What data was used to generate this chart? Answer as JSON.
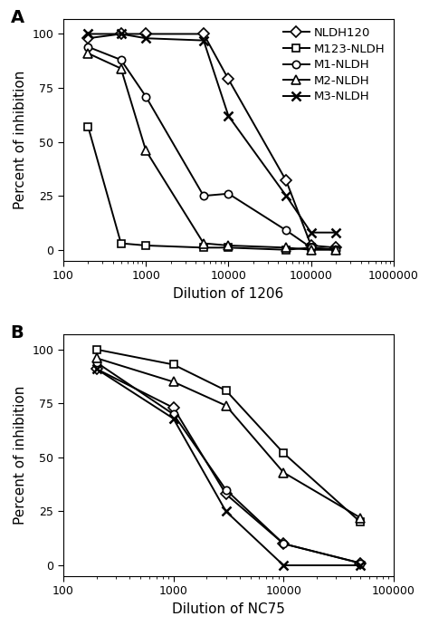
{
  "panel_A": {
    "title": "A",
    "xlabel": "Dilution of 1206",
    "ylabel": "Percent of inhibition",
    "xlim": [
      100,
      1000000
    ],
    "ylim": [
      -5,
      107
    ],
    "yticks": [
      0,
      25,
      50,
      75,
      100
    ],
    "xticks": [
      100,
      1000,
      10000,
      100000,
      1000000
    ],
    "xticklabels": [
      "100",
      "1000",
      "10000",
      "100000",
      "1000000"
    ],
    "series": [
      {
        "label": "NLDH120",
        "marker": "D",
        "markersize": 6,
        "x": [
          200,
          500,
          1000,
          5000,
          10000,
          50000,
          100000,
          200000
        ],
        "y": [
          98,
          100,
          100,
          100,
          79,
          32,
          2,
          1
        ]
      },
      {
        "label": "M123-NLDH",
        "marker": "s",
        "markersize": 6,
        "x": [
          200,
          500,
          1000,
          5000,
          10000,
          50000,
          100000,
          200000
        ],
        "y": [
          57,
          3,
          2,
          1,
          1,
          0,
          1,
          0
        ]
      },
      {
        "label": "M1-NLDH",
        "marker": "o",
        "markersize": 6,
        "x": [
          200,
          500,
          1000,
          5000,
          10000,
          50000,
          100000,
          200000
        ],
        "y": [
          94,
          88,
          71,
          25,
          26,
          9,
          1,
          0
        ]
      },
      {
        "label": "M2-NLDH",
        "marker": "^",
        "markersize": 7,
        "x": [
          200,
          500,
          1000,
          5000,
          10000,
          50000,
          100000,
          200000
        ],
        "y": [
          91,
          84,
          46,
          3,
          2,
          1,
          0,
          0
        ]
      },
      {
        "label": "M3-NLDH",
        "marker": "x",
        "markersize": 7,
        "x": [
          200,
          500,
          1000,
          5000,
          10000,
          50000,
          100000,
          200000
        ],
        "y": [
          100,
          100,
          98,
          97,
          62,
          25,
          8,
          8
        ]
      }
    ]
  },
  "panel_B": {
    "title": "B",
    "xlabel": "Dilution of NC75",
    "ylabel": "Percent of inhibition",
    "xlim": [
      100,
      100000
    ],
    "ylim": [
      -5,
      107
    ],
    "yticks": [
      0,
      25,
      50,
      75,
      100
    ],
    "xticks": [
      100,
      1000,
      10000,
      100000
    ],
    "xticklabels": [
      "100",
      "1000",
      "10000",
      "100000"
    ],
    "series": [
      {
        "label": "NLDH120",
        "marker": "D",
        "markersize": 6,
        "x": [
          200,
          1000,
          3000,
          10000,
          50000
        ],
        "y": [
          91,
          73,
          33,
          10,
          1
        ]
      },
      {
        "label": "M123-NLDH",
        "marker": "s",
        "markersize": 6,
        "x": [
          200,
          1000,
          3000,
          10000,
          50000
        ],
        "y": [
          100,
          93,
          81,
          52,
          20
        ]
      },
      {
        "label": "M1-NLDH",
        "marker": "o",
        "markersize": 6,
        "x": [
          200,
          1000,
          3000,
          10000,
          50000
        ],
        "y": [
          94,
          70,
          35,
          10,
          1
        ]
      },
      {
        "label": "M2-NLDH",
        "marker": "^",
        "markersize": 7,
        "x": [
          200,
          1000,
          3000,
          10000,
          50000
        ],
        "y": [
          96,
          85,
          74,
          43,
          22
        ]
      },
      {
        "label": "M3-NLDH",
        "marker": "x",
        "markersize": 7,
        "x": [
          200,
          1000,
          3000,
          10000,
          50000
        ],
        "y": [
          91,
          68,
          25,
          0,
          0
        ]
      }
    ]
  },
  "background_color": "#ffffff",
  "label_fontsize": 11,
  "tick_fontsize": 9,
  "panel_label_fontsize": 14,
  "legend_fontsize": 9.5
}
